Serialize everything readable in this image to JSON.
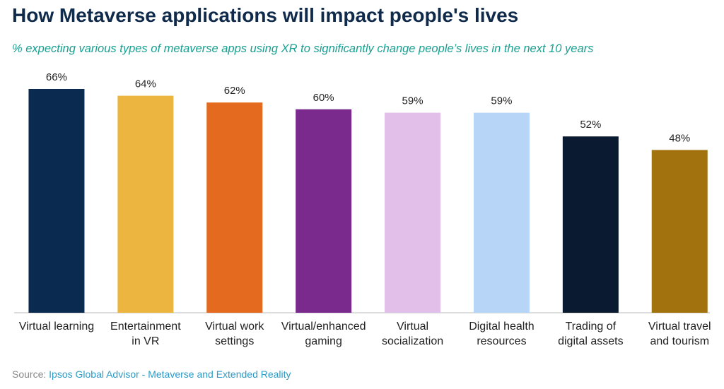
{
  "chart_data": {
    "type": "bar",
    "title": "How Metaverse applications will impact people's lives",
    "subtitle": "% expecting various types of metaverse apps using XR to significantly change people’s lives in the next 10 years",
    "categories": [
      "Virtual learning",
      "Entertainment in VR",
      "Virtual work settings",
      "Virtual/enhanced gaming",
      "Virtual socialization",
      "Digital health resources",
      "Trading of digital assets",
      "Virtual travel and tourism"
    ],
    "values": [
      66,
      64,
      62,
      60,
      59,
      59,
      52,
      48
    ],
    "value_labels": [
      "66%",
      "64%",
      "62%",
      "60%",
      "59%",
      "59%",
      "52%",
      "48%"
    ],
    "colors": [
      "#0b2a4f",
      "#ecb53f",
      "#e36a1f",
      "#7a2a8c",
      "#e1bfe8",
      "#b7d6f7",
      "#0a1a30",
      "#a2720f"
    ],
    "source_label": "Source:",
    "source": "Ipsos Global Advisor - Metaverse and Extended Reality"
  }
}
